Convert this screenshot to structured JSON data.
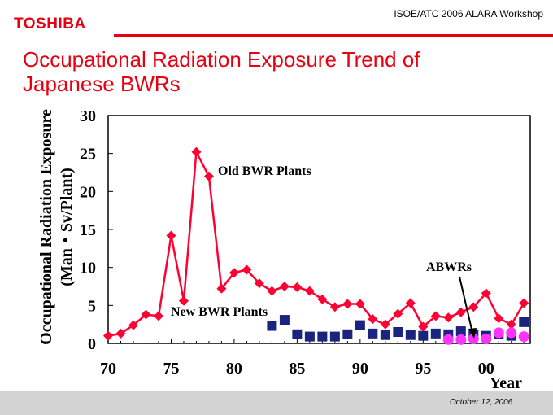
{
  "header": {
    "logo_text": "TOSHIBA",
    "conference": "ISOE/ATC 2006 ALARA Workshop",
    "title_line1": "Occupational Radiation Exposure Trend of",
    "title_line2": "Japanese BWRs"
  },
  "footer": {
    "date": "October 12, 2006"
  },
  "colors": {
    "brand_red": "#e60012",
    "old_series": "#ff0033",
    "new_series": "#1a237e",
    "abwr_series": "#ff33ff",
    "footer_bg": "#d3d3d3"
  },
  "chart_data": {
    "type": "line",
    "ylabel_line1": "Occupational Radiation Exposure",
    "ylabel_line2": "(Man・Sv/Plant)",
    "xlabel": "Year",
    "xlim": [
      1970,
      2003.5
    ],
    "ylim": [
      0,
      30
    ],
    "y_ticks": [
      0,
      5,
      10,
      15,
      20,
      25,
      30
    ],
    "y_tick_labels": [
      "0",
      "5",
      "10",
      "15",
      "20",
      "25",
      "30"
    ],
    "x_ticks": [
      1970,
      1975,
      1980,
      1985,
      1990,
      1995,
      2000
    ],
    "x_tick_labels": [
      "70",
      "75",
      "80",
      "85",
      "90",
      "95",
      "00"
    ],
    "annotations": [
      {
        "text": "Old BWR Plants",
        "series": "old"
      },
      {
        "text": "New BWR Plants",
        "series": "new"
      },
      {
        "text": "ABWRs",
        "series": "abwr"
      }
    ],
    "series": [
      {
        "name": "Old BWR Plants",
        "key": "old",
        "marker": "diamond",
        "line": true,
        "color": "#ff0033",
        "x": [
          1970,
          1971,
          1972,
          1973,
          1974,
          1975,
          1976,
          1977,
          1978,
          1979,
          1980,
          1981,
          1982,
          1983,
          1984,
          1985,
          1986,
          1987,
          1988,
          1989,
          1990,
          1991,
          1992,
          1993,
          1994,
          1995,
          1996,
          1997,
          1998,
          1999,
          2000,
          2001,
          2002,
          2003
        ],
        "values": [
          1.0,
          1.3,
          2.4,
          3.8,
          3.6,
          14.2,
          5.6,
          25.2,
          22.0,
          7.2,
          9.3,
          9.7,
          7.9,
          6.9,
          7.5,
          7.4,
          6.9,
          5.8,
          4.8,
          5.2,
          5.2,
          3.2,
          2.5,
          3.9,
          5.3,
          2.2,
          3.6,
          3.4,
          4.1,
          4.8,
          6.6,
          3.3,
          2.5,
          5.3
        ]
      },
      {
        "name": "New BWR Plants",
        "key": "new",
        "marker": "square",
        "line": false,
        "color": "#1a237e",
        "x": [
          1983,
          1984,
          1985,
          1986,
          1987,
          1988,
          1989,
          1990,
          1991,
          1992,
          1993,
          1994,
          1995,
          1996,
          1997,
          1998,
          1999,
          2000,
          2001,
          2002,
          2003
        ],
        "values": [
          2.3,
          3.1,
          1.2,
          0.9,
          0.9,
          0.9,
          1.2,
          2.4,
          1.3,
          1.1,
          1.5,
          1.1,
          1.0,
          1.3,
          1.2,
          1.6,
          1.2,
          1.0,
          1.2,
          1.0,
          2.8
        ]
      },
      {
        "name": "ABWRs",
        "key": "abwr",
        "marker": "circle",
        "line": false,
        "color": "#ff33ff",
        "x": [
          1997,
          1998,
          1999,
          2000,
          2001,
          2002,
          2003
        ],
        "values": [
          0.5,
          0.5,
          0.6,
          0.6,
          1.4,
          1.4,
          0.9
        ]
      }
    ]
  }
}
